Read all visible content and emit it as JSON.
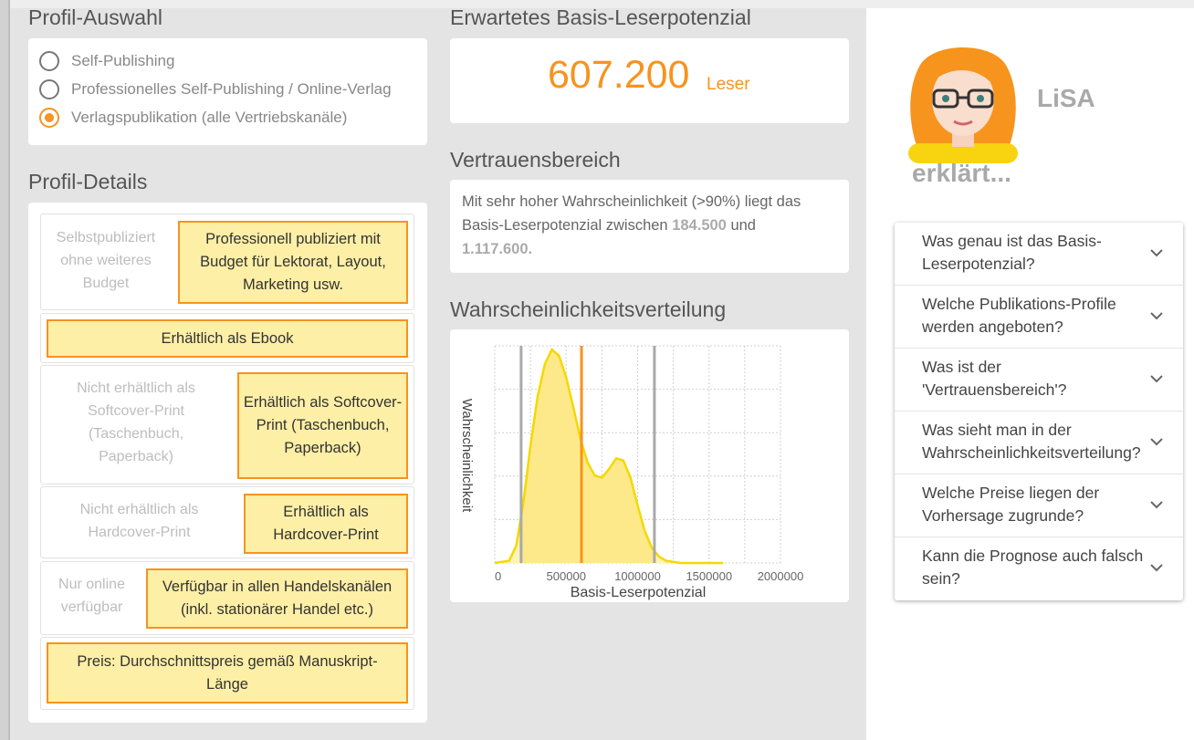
{
  "profile_selection": {
    "title": "Profil-Auswahl",
    "options": [
      {
        "label": "Self-Publishing",
        "selected": false
      },
      {
        "label": "Professionelles Self-Publishing / Online-Verlag",
        "selected": false
      },
      {
        "label": "Verlagspublikation (alle Vertriebskanäle)",
        "selected": true
      }
    ]
  },
  "profile_details": {
    "title": "Profil-Details",
    "rows": [
      {
        "grey": "Selbstpubliziert ohne weiteres Budget",
        "highlight": "Professionell publiziert mit Budget für Lektorat, Layout, Marketing usw."
      },
      {
        "grey": "",
        "highlight": "Erhältlich als Ebook"
      },
      {
        "grey": "Nicht erhältlich als Softcover-Print (Taschenbuch, Paperback)",
        "highlight": "Erhältlich als Softcover-Print (Taschenbuch, Paperback)"
      },
      {
        "grey": "Nicht erhältlich als Hardcover-Print",
        "highlight": "Erhältlich als Hardcover-Print"
      },
      {
        "grey": "Nur online verfügbar",
        "highlight": "Verfügbar in allen Handelskanälen (inkl. stationärer Handel etc.)"
      },
      {
        "grey": "",
        "highlight": "Preis: Durchschnittspreis gemäß Manuskript-Länge"
      }
    ]
  },
  "potential": {
    "title": "Erwartetes Basis-Leserpotenzial",
    "value": "607.200",
    "unit": "Leser"
  },
  "confidence": {
    "title": "Vertrauensbereich",
    "text_before": "Mit sehr hoher Wahrscheinlichkeit (>90%) liegt das Basis-Leserpotenzial zwischen ",
    "low": "184.500",
    "text_mid": " und ",
    "high": "1.117.600."
  },
  "distribution": {
    "title": "Wahrscheinlichkeitsverteilung"
  },
  "chart_data": {
    "type": "area",
    "xlabel": "Basis-Leserpotenzial",
    "ylabel": "Wahrscheinlichkeit",
    "xlim": [
      0,
      2000000
    ],
    "x_ticks": [
      "0",
      "500000",
      "1000000",
      "1500000",
      "2000000"
    ],
    "x": [
      0,
      100000,
      150000,
      200000,
      250000,
      300000,
      350000,
      400000,
      450000,
      500000,
      550000,
      600000,
      650000,
      700000,
      750000,
      800000,
      850000,
      900000,
      950000,
      1000000,
      1050000,
      1100000,
      1150000,
      1200000,
      1300000,
      1400000,
      1500000,
      1600000
    ],
    "y": [
      0.0,
      0.01,
      0.08,
      0.28,
      0.55,
      0.78,
      0.93,
      1.0,
      0.97,
      0.87,
      0.73,
      0.58,
      0.47,
      0.41,
      0.4,
      0.44,
      0.49,
      0.48,
      0.4,
      0.27,
      0.15,
      0.07,
      0.03,
      0.01,
      0.0,
      0.0,
      0.0,
      0.0
    ],
    "shaded_range": [
      184500,
      1117600
    ],
    "vlines": [
      {
        "x": 184500,
        "color": "#a9a9a9"
      },
      {
        "x": 607200,
        "color": "#f7931e"
      },
      {
        "x": 1117600,
        "color": "#a9a9a9"
      }
    ],
    "fill_color": "#fde98a",
    "line_color": "#f5d800",
    "grid": true
  },
  "assistant": {
    "name": "LiSA",
    "subtitle": "erklärt..."
  },
  "faq": [
    "Was genau ist das Basis-Leserpotenzial?",
    "Welche Publikations-Profile werden angeboten?",
    "Was ist der 'Vertrauensbereich'?",
    "Was sieht man in der Wahrscheinlichkeitsverteilung?",
    "Welche Preise liegen der Vorhersage zugrunde?",
    "Kann die Prognose auch falsch sein?"
  ]
}
